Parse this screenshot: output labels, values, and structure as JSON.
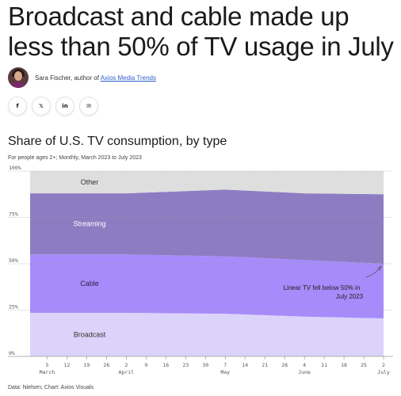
{
  "article": {
    "headline": "Broadcast and cable made up less than 50% of TV usage in July",
    "byline_prefix": "Sara Fischer, author of ",
    "byline_link": "Axios Media Trends",
    "share_buttons": [
      {
        "icon": "facebook-icon",
        "glyph": "f"
      },
      {
        "icon": "twitter-icon",
        "glyph": "𝕏"
      },
      {
        "icon": "linkedin-icon",
        "glyph": "in"
      },
      {
        "icon": "email-icon",
        "glyph": "✉"
      }
    ]
  },
  "chart": {
    "title": "Share of U.S. TV consumption, by type",
    "subtitle": "For people ages 2+; Monthly, March 2023 to July 2023",
    "source": "Data: Nielsen; Chart: Axios Visuals",
    "annotation": "Linear TV fell below 50% in July 2023"
  },
  "chart_data": {
    "type": "area",
    "stacked": true,
    "x": [
      "2023-03-05",
      "2023-04-02",
      "2023-05-07",
      "2023-06-04",
      "2023-07-02"
    ],
    "series": [
      {
        "name": "Broadcast",
        "values": [
          23.5,
          23.5,
          23.0,
          21.5,
          20.5
        ],
        "color": "#dcd3fa"
      },
      {
        "name": "Cable",
        "values": [
          31.5,
          31.5,
          31.0,
          30.5,
          29.5
        ],
        "color": "#a78bfa"
      },
      {
        "name": "Streaming",
        "values": [
          33.0,
          33.0,
          36.0,
          36.0,
          37.5
        ],
        "color": "#8e7cc3"
      },
      {
        "name": "Other",
        "values": [
          12.0,
          12.0,
          10.0,
          12.0,
          12.5
        ],
        "color": "#dedede"
      }
    ],
    "y_ticks": [
      "0%",
      "25%",
      "50%",
      "75%",
      "100%"
    ],
    "y_tick_values": [
      0,
      25,
      50,
      75,
      100
    ],
    "ylim": [
      0,
      100
    ],
    "x_ticks": [
      "5",
      "12",
      "19",
      "26",
      "2",
      "9",
      "16",
      "23",
      "30",
      "7",
      "14",
      "21",
      "28",
      "4",
      "11",
      "18",
      "25",
      "2"
    ],
    "month_labels": [
      {
        "label": "March",
        "tick_index": 0
      },
      {
        "label": "April",
        "tick_index": 4
      },
      {
        "label": "May",
        "tick_index": 9
      },
      {
        "label": "June",
        "tick_index": 13
      },
      {
        "label": "July",
        "tick_index": 17
      }
    ],
    "grid": true
  },
  "colors": {
    "link": "#2f5fd0",
    "grid": "#9a9a9a"
  }
}
